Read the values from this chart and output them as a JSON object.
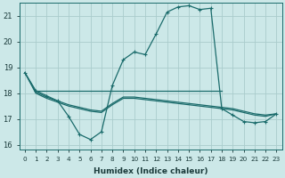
{
  "xlabel": "Humidex (Indice chaleur)",
  "bg_color": "#cce8e8",
  "grid_color": "#aacccc",
  "line_color": "#1a6b6b",
  "xlim": [
    -0.5,
    23.5
  ],
  "ylim": [
    15.8,
    21.5
  ],
  "yticks": [
    16,
    17,
    18,
    19,
    20,
    21
  ],
  "xticks": [
    0,
    1,
    2,
    3,
    4,
    5,
    6,
    7,
    8,
    9,
    10,
    11,
    12,
    13,
    14,
    15,
    16,
    17,
    18,
    19,
    20,
    21,
    22,
    23
  ],
  "series_main_x": [
    0,
    1,
    2,
    3,
    4,
    5,
    6,
    7,
    8,
    9,
    10,
    11,
    12,
    13,
    14,
    15,
    16,
    17,
    18,
    19,
    20,
    21,
    22,
    23
  ],
  "series_main_y": [
    18.8,
    18.1,
    17.9,
    17.7,
    17.1,
    16.4,
    16.2,
    16.5,
    18.3,
    19.3,
    19.6,
    19.5,
    20.3,
    21.15,
    21.35,
    21.4,
    21.25,
    21.3,
    17.4,
    17.15,
    16.9,
    16.85,
    16.9,
    17.2
  ],
  "series_flat_x": [
    1,
    2,
    3,
    4,
    5,
    6,
    7,
    8,
    9,
    10,
    11,
    12,
    13,
    14,
    15,
    16,
    17,
    18
  ],
  "series_flat_y": [
    18.1,
    18.1,
    18.1,
    18.1,
    18.1,
    18.1,
    18.1,
    18.1,
    18.1,
    18.1,
    18.1,
    18.1,
    18.1,
    18.1,
    18.1,
    18.1,
    18.1,
    18.1
  ],
  "series_decline_x": [
    0,
    1,
    2,
    3,
    4,
    5,
    6,
    7,
    8,
    9,
    10,
    11,
    12,
    13,
    14,
    15,
    16,
    17,
    18,
    19,
    20,
    21,
    22,
    23
  ],
  "series_decline_y": [
    18.8,
    18.05,
    17.85,
    17.7,
    17.55,
    17.45,
    17.35,
    17.3,
    17.6,
    17.85,
    17.85,
    17.8,
    17.75,
    17.7,
    17.65,
    17.6,
    17.55,
    17.5,
    17.45,
    17.4,
    17.3,
    17.2,
    17.15,
    17.2
  ],
  "series_decline2_x": [
    0,
    1,
    2,
    3,
    4,
    5,
    6,
    7,
    8,
    9,
    10,
    11,
    12,
    13,
    14,
    15,
    16,
    17,
    18,
    19,
    20,
    21,
    22,
    23
  ],
  "series_decline2_y": [
    18.8,
    18.0,
    17.8,
    17.65,
    17.5,
    17.4,
    17.3,
    17.25,
    17.55,
    17.8,
    17.8,
    17.75,
    17.7,
    17.65,
    17.6,
    17.55,
    17.5,
    17.45,
    17.4,
    17.35,
    17.25,
    17.15,
    17.1,
    17.2
  ],
  "marker": "+",
  "markersize": 3,
  "linewidth": 0.9
}
